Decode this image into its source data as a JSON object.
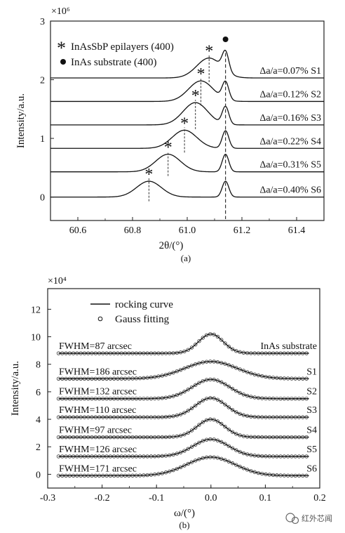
{
  "chart_data": [
    {
      "type": "line",
      "panel_label": "(a)",
      "xlabel": "2θ/(°)",
      "ylabel": "Intensity/a.u.",
      "y_multiplier": "×10⁶",
      "xlim": [
        60.5,
        61.5
      ],
      "ylim": [
        -0.4,
        3.0
      ],
      "x_ticks": [
        "60.6",
        "60.8",
        "61.0",
        "61.2",
        "61.4"
      ],
      "x_tick_values": [
        60.6,
        60.8,
        61.0,
        61.2,
        61.4
      ],
      "y_ticks": [
        "0",
        "1",
        "2",
        "3"
      ],
      "y_tick_values": [
        0,
        1,
        2,
        3
      ],
      "legend": [
        {
          "symbol": "*",
          "label": "InAsSbP epilayers (400)"
        },
        {
          "symbol": "●",
          "label": "InAs substrate (400)"
        }
      ],
      "substrate_peak": 61.14,
      "series": [
        {
          "name": "S1",
          "label": "Δa/a=0.07% S1",
          "baseline": 2.03,
          "epi_peak": 61.08,
          "epi_height": 0.34,
          "sub_height": 0.33
        },
        {
          "name": "S2",
          "label": "Δa/a=0.12% S2",
          "baseline": 1.63,
          "epi_peak": 61.05,
          "epi_height": 0.35,
          "sub_height": 0.3
        },
        {
          "name": "S3",
          "label": "Δa/a=0.16% S3",
          "baseline": 1.23,
          "epi_peak": 61.03,
          "epi_height": 0.38,
          "sub_height": 0.3
        },
        {
          "name": "S4",
          "label": "Δa/a=0.22% S4",
          "baseline": 0.83,
          "epi_peak": 60.99,
          "epi_height": 0.31,
          "sub_height": 0.3
        },
        {
          "name": "S5",
          "label": "Δa/a=0.31% S5",
          "baseline": 0.43,
          "epi_peak": 60.93,
          "epi_height": 0.3,
          "sub_height": 0.3
        },
        {
          "name": "S6",
          "label": "Δa/a=0.40% S6",
          "baseline": 0.0,
          "epi_peak": 60.86,
          "epi_height": 0.27,
          "sub_height": 0.27
        }
      ]
    },
    {
      "type": "line",
      "panel_label": "(b)",
      "xlabel": "ω/(°)",
      "ylabel": "Intensity/a.u.",
      "y_multiplier": "×10⁴",
      "xlim": [
        -0.3,
        0.2
      ],
      "ylim": [
        -1,
        13.5
      ],
      "x_ticks": [
        "-0.3",
        "-0.2",
        "-0.1",
        "0.0",
        "0.1",
        "0.2"
      ],
      "x_tick_values": [
        -0.3,
        -0.2,
        -0.1,
        0.0,
        0.1,
        0.2
      ],
      "y_ticks": [
        "0",
        "2",
        "4",
        "6",
        "8",
        "10",
        "12"
      ],
      "y_tick_values": [
        0,
        2,
        4,
        6,
        8,
        10,
        12
      ],
      "legend": [
        {
          "symbol": "line",
          "label": "rocking curve"
        },
        {
          "symbol": "circle",
          "label": "Gauss fitting"
        }
      ],
      "series": [
        {
          "name": "InAs substrate",
          "fwhm_label": "FWHM=87 arcsec",
          "baseline": 8.8,
          "peak": 10.2,
          "center": 0.0,
          "fwhm_arcsec": 87
        },
        {
          "name": "S1",
          "fwhm_label": "FWHM=186 arcsec",
          "baseline": 6.95,
          "peak": 8.2,
          "center": 0.0,
          "fwhm_arcsec": 186
        },
        {
          "name": "S2",
          "fwhm_label": "FWHM=132 arcsec",
          "baseline": 5.5,
          "peak": 6.9,
          "center": 0.0,
          "fwhm_arcsec": 132
        },
        {
          "name": "S3",
          "fwhm_label": "FWHM=110 arcsec",
          "baseline": 4.15,
          "peak": 5.55,
          "center": 0.0,
          "fwhm_arcsec": 110
        },
        {
          "name": "S4",
          "fwhm_label": "FWHM=97 arcsec",
          "baseline": 2.7,
          "peak": 4.0,
          "center": 0.0,
          "fwhm_arcsec": 97
        },
        {
          "name": "S5",
          "fwhm_label": "FWHM=126 arcsec",
          "baseline": 1.3,
          "peak": 2.55,
          "center": 0.0,
          "fwhm_arcsec": 126
        },
        {
          "name": "S6",
          "fwhm_label": "FWHM=171 arcsec",
          "baseline": -0.1,
          "peak": 1.25,
          "center": 0.0,
          "fwhm_arcsec": 171
        }
      ]
    }
  ],
  "watermark": "红外芯闻"
}
